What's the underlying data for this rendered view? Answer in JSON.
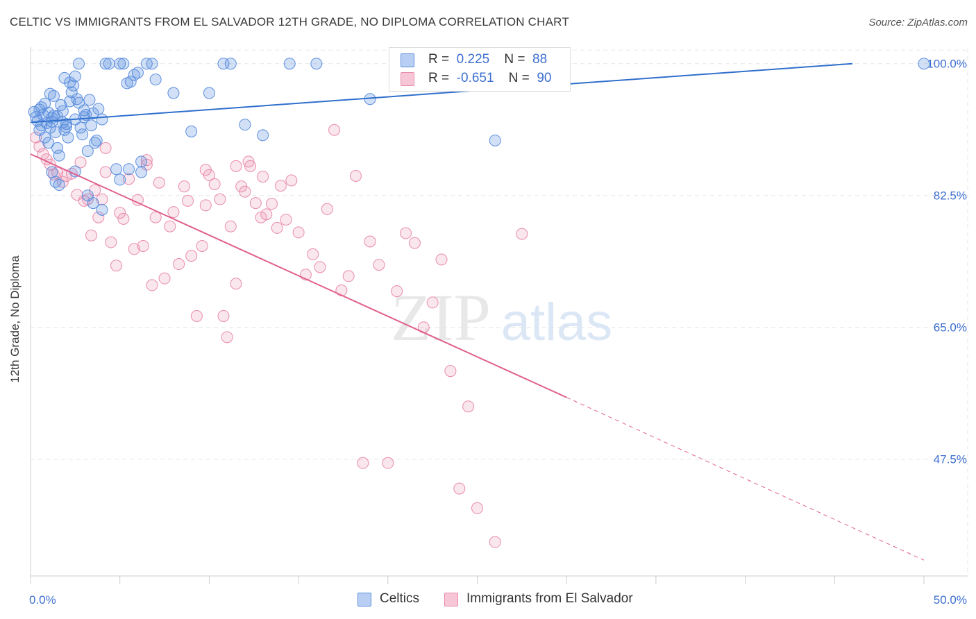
{
  "title": "CELTIC VS IMMIGRANTS FROM EL SALVADOR 12TH GRADE, NO DIPLOMA CORRELATION CHART",
  "source": "Source: ZipAtlas.com",
  "watermark": {
    "zip": "ZIP",
    "atlas": "atlas"
  },
  "colors": {
    "blue": "#5b8ede",
    "blue_line": "#2f6fcd",
    "pink": "#e98bab",
    "pink_line": "#e0608f",
    "tick_text": "#3d6fcf"
  },
  "legend": {
    "blue": {
      "r_label": "R =",
      "r_value": "0.225",
      "n_label": "N =",
      "n_value": "88"
    },
    "pink": {
      "r_label": "R =",
      "r_value": "-0.651",
      "n_label": "N =",
      "n_value": "90"
    }
  },
  "chart_data": {
    "type": "scatter",
    "title": "CELTIC VS IMMIGRANTS FROM EL SALVADOR 12TH GRADE, NO DIPLOMA CORRELATION CHART",
    "xlabel": "",
    "ylabel": "12th Grade, No Diploma",
    "xlim": [
      0,
      50
    ],
    "ylim": [
      32,
      102
    ],
    "x_tick_labels": [
      "0.0%",
      "50.0%"
    ],
    "y_ticks": [
      100,
      82.5,
      65,
      47.5
    ],
    "y_tick_labels": [
      "100.0%",
      "82.5%",
      "65.0%",
      "47.5%"
    ],
    "grid": true,
    "legend_position": "top-center",
    "series": [
      {
        "name": "Celtics",
        "color": "#5b8ede",
        "points": [
          [
            0.2,
            93.6
          ],
          [
            0.3,
            92.9
          ],
          [
            0.4,
            92.4
          ],
          [
            0.5,
            93.9
          ],
          [
            0.6,
            91.8
          ],
          [
            0.7,
            93.2
          ],
          [
            0.8,
            94.7
          ],
          [
            0.9,
            92.1
          ],
          [
            1.0,
            93.5
          ],
          [
            1.1,
            91.5
          ],
          [
            1.2,
            92.8
          ],
          [
            1.3,
            93.1
          ],
          [
            1.4,
            90.9
          ],
          [
            1.5,
            88.8
          ],
          [
            1.6,
            87.8
          ],
          [
            1.7,
            94.5
          ],
          [
            1.8,
            93.7
          ],
          [
            1.9,
            91.2
          ],
          [
            2.0,
            92.0
          ],
          [
            2.1,
            90.2
          ],
          [
            2.2,
            95.0
          ],
          [
            2.3,
            96.2
          ],
          [
            2.4,
            97.1
          ],
          [
            1.9,
            98.1
          ],
          [
            2.6,
            95.3
          ],
          [
            2.7,
            94.8
          ],
          [
            2.8,
            91.5
          ],
          [
            2.9,
            90.6
          ],
          [
            3.0,
            92.9
          ],
          [
            3.1,
            93.2
          ],
          [
            3.2,
            88.4
          ],
          [
            3.3,
            95.2
          ],
          [
            3.4,
            91.8
          ],
          [
            3.5,
            93.4
          ],
          [
            3.6,
            89.5
          ],
          [
            3.7,
            89.8
          ],
          [
            3.8,
            94.0
          ],
          [
            4.0,
            92.6
          ],
          [
            4.2,
            100.0
          ],
          [
            4.4,
            100.0
          ],
          [
            2.7,
            100.0
          ],
          [
            4.8,
            86.0
          ],
          [
            5.0,
            100.0
          ],
          [
            5.2,
            100.0
          ],
          [
            5.4,
            97.4
          ],
          [
            5.6,
            97.6
          ],
          [
            5.8,
            98.5
          ],
          [
            6.0,
            98.8
          ],
          [
            6.2,
            87.0
          ],
          [
            6.5,
            100.0
          ],
          [
            6.8,
            100.0
          ],
          [
            7.0,
            97.9
          ],
          [
            8.0,
            96.1
          ],
          [
            9.0,
            91.0
          ],
          [
            10.0,
            96.1
          ],
          [
            10.8,
            100.0
          ],
          [
            11.2,
            100.0
          ],
          [
            12.0,
            91.9
          ],
          [
            13.0,
            90.5
          ],
          [
            14.5,
            100.0
          ],
          [
            16.0,
            100.0
          ],
          [
            19.0,
            95.3
          ],
          [
            26.0,
            89.8
          ],
          [
            50.0,
            100.0
          ],
          [
            1.2,
            85.6
          ],
          [
            1.4,
            84.3
          ],
          [
            1.6,
            83.9
          ],
          [
            2.5,
            85.7
          ],
          [
            3.2,
            82.5
          ],
          [
            3.5,
            81.5
          ],
          [
            4.0,
            80.6
          ],
          [
            5.0,
            84.6
          ],
          [
            5.5,
            86.0
          ],
          [
            6.2,
            85.6
          ],
          [
            0.5,
            91.2
          ],
          [
            0.8,
            90.2
          ],
          [
            1.0,
            89.5
          ],
          [
            1.2,
            92.3
          ],
          [
            1.5,
            93.0
          ],
          [
            1.8,
            92.2
          ],
          [
            2.0,
            91.6
          ],
          [
            2.5,
            92.6
          ],
          [
            3.0,
            93.8
          ],
          [
            0.6,
            94.2
          ],
          [
            1.1,
            96.0
          ],
          [
            1.3,
            95.7
          ],
          [
            2.2,
            97.5
          ],
          [
            2.5,
            98.3
          ]
        ]
      },
      {
        "name": "Immigrants from El Salvador",
        "color": "#e98bab",
        "points": [
          [
            0.3,
            90.2
          ],
          [
            0.5,
            89.0
          ],
          [
            0.7,
            88.0
          ],
          [
            0.9,
            87.3
          ],
          [
            1.1,
            86.6
          ],
          [
            1.3,
            85.3
          ],
          [
            1.5,
            85.5
          ],
          [
            1.8,
            84.3
          ],
          [
            2.0,
            85.1
          ],
          [
            2.3,
            85.4
          ],
          [
            2.6,
            82.6
          ],
          [
            2.8,
            86.9
          ],
          [
            3.0,
            81.8
          ],
          [
            3.2,
            82.0
          ],
          [
            3.4,
            77.2
          ],
          [
            3.6,
            83.2
          ],
          [
            3.8,
            79.6
          ],
          [
            4.0,
            82.0
          ],
          [
            4.2,
            85.6
          ],
          [
            4.5,
            76.3
          ],
          [
            4.8,
            73.2
          ],
          [
            5.0,
            80.2
          ],
          [
            5.2,
            79.4
          ],
          [
            5.5,
            84.7
          ],
          [
            5.8,
            75.4
          ],
          [
            6.0,
            81.9
          ],
          [
            6.3,
            75.8
          ],
          [
            6.5,
            87.2
          ],
          [
            6.8,
            70.6
          ],
          [
            7.0,
            79.6
          ],
          [
            7.2,
            84.2
          ],
          [
            7.5,
            71.5
          ],
          [
            7.8,
            78.4
          ],
          [
            8.0,
            80.3
          ],
          [
            8.3,
            73.4
          ],
          [
            8.6,
            83.7
          ],
          [
            8.8,
            81.8
          ],
          [
            9.0,
            74.5
          ],
          [
            9.3,
            66.5
          ],
          [
            9.6,
            75.8
          ],
          [
            9.8,
            81.2
          ],
          [
            10.0,
            85.2
          ],
          [
            10.3,
            84.0
          ],
          [
            10.6,
            82.0
          ],
          [
            10.8,
            66.5
          ],
          [
            11.0,
            63.7
          ],
          [
            11.2,
            78.4
          ],
          [
            11.5,
            70.8
          ],
          [
            11.8,
            83.7
          ],
          [
            12.0,
            83.0
          ],
          [
            12.3,
            86.4
          ],
          [
            12.6,
            81.5
          ],
          [
            12.9,
            79.6
          ],
          [
            13.2,
            80.0
          ],
          [
            13.5,
            81.4
          ],
          [
            13.8,
            78.2
          ],
          [
            14.0,
            83.8
          ],
          [
            14.3,
            79.3
          ],
          [
            14.6,
            84.5
          ],
          [
            15.0,
            77.6
          ],
          [
            15.4,
            72.0
          ],
          [
            15.8,
            74.7
          ],
          [
            16.2,
            73.0
          ],
          [
            16.6,
            80.7
          ],
          [
            17.0,
            91.2
          ],
          [
            17.4,
            69.9
          ],
          [
            17.8,
            71.8
          ],
          [
            18.2,
            85.1
          ],
          [
            18.6,
            47.0
          ],
          [
            19.0,
            76.4
          ],
          [
            19.5,
            73.3
          ],
          [
            20.0,
            47.0
          ],
          [
            20.5,
            69.8
          ],
          [
            21.0,
            77.5
          ],
          [
            21.5,
            76.2
          ],
          [
            22.0,
            65.0
          ],
          [
            22.5,
            68.3
          ],
          [
            23.0,
            74.0
          ],
          [
            23.5,
            59.2
          ],
          [
            24.0,
            43.6
          ],
          [
            24.5,
            54.5
          ],
          [
            25.0,
            41.0
          ],
          [
            26.0,
            36.5
          ],
          [
            27.5,
            77.4
          ],
          [
            12.2,
            87.0
          ],
          [
            11.5,
            86.4
          ],
          [
            13.0,
            85.0
          ],
          [
            9.8,
            85.9
          ],
          [
            4.2,
            88.8
          ],
          [
            6.5,
            86.6
          ]
        ]
      }
    ],
    "trendlines": [
      {
        "series": "Celtics",
        "x": [
          0,
          46
        ],
        "y": [
          92.2,
          100.0
        ],
        "style": "solid"
      },
      {
        "series": "Immigrants from El Salvador",
        "x": [
          0,
          30
        ],
        "y": [
          88.0,
          55.7
        ],
        "style": "solid"
      },
      {
        "series": "Immigrants from El Salvador",
        "x": [
          30,
          50
        ],
        "y": [
          55.7,
          34.1
        ],
        "style": "dashed"
      }
    ]
  }
}
